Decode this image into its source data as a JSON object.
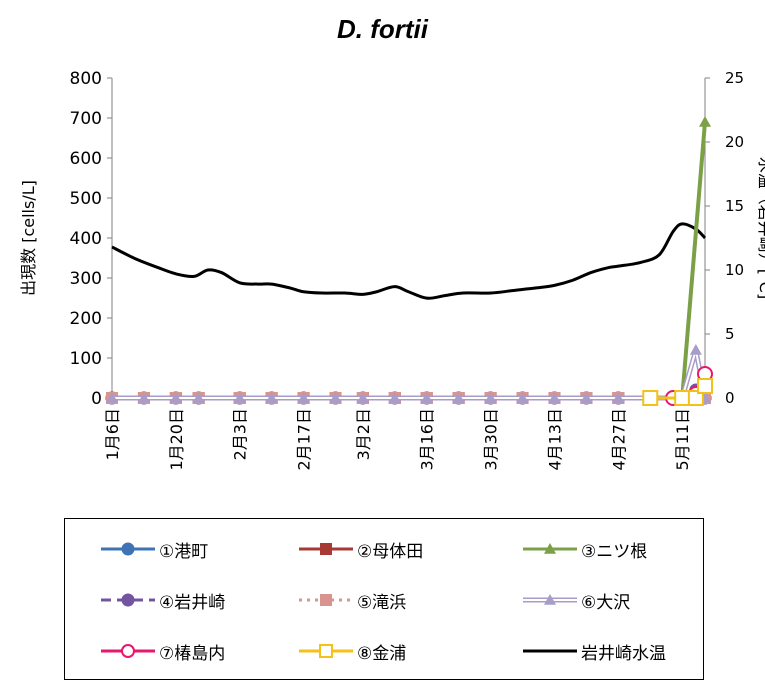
{
  "chart_data": {
    "type": "line",
    "title": "D. fortii",
    "ylabel": "出現数 [cells/L]",
    "y2label": "水温（岩井崎）[℃]",
    "ylim": [
      0,
      800
    ],
    "y2lim": [
      0,
      25
    ],
    "yticks": [
      "0",
      "100",
      "200",
      "300",
      "400",
      "500",
      "600",
      "700",
      "800"
    ],
    "y2ticks": [
      "0",
      "5",
      "10",
      "15",
      "20",
      "25"
    ],
    "xlim": [
      "01-06",
      "05-16"
    ],
    "xticks": [
      {
        "date": "01-06",
        "label": "1月6日"
      },
      {
        "date": "01-20",
        "label": "1月20日"
      },
      {
        "date": "02-03",
        "label": "2月3日"
      },
      {
        "date": "02-17",
        "label": "2月17日"
      },
      {
        "date": "03-02",
        "label": "3月2日"
      },
      {
        "date": "03-16",
        "label": "3月16日"
      },
      {
        "date": "03-30",
        "label": "3月30日"
      },
      {
        "date": "04-13",
        "label": "4月13日"
      },
      {
        "date": "04-27",
        "label": "4月27日"
      },
      {
        "date": "05-11",
        "label": "5月11日"
      }
    ],
    "grid": false,
    "legend_position": "bottom",
    "sampling_dates": [
      "01-06",
      "01-13",
      "01-20",
      "01-25",
      "02-03",
      "02-10",
      "02-17",
      "02-24",
      "03-02",
      "03-09",
      "03-16",
      "03-23",
      "03-30",
      "04-06",
      "04-13",
      "04-20",
      "04-27",
      "05-04",
      "05-09",
      "05-11",
      "05-14",
      "05-16"
    ],
    "series": [
      {
        "name": "①港町",
        "color": "#3F73B6",
        "marker": "circle-filled",
        "dash": "solid",
        "points": [
          [
            "01-06",
            0
          ],
          [
            "01-13",
            0
          ],
          [
            "01-20",
            0
          ],
          [
            "01-25",
            0
          ],
          [
            "02-03",
            0
          ],
          [
            "02-10",
            0
          ],
          [
            "02-17",
            0
          ],
          [
            "02-24",
            0
          ],
          [
            "03-02",
            0
          ],
          [
            "03-09",
            0
          ],
          [
            "03-16",
            0
          ],
          [
            "03-23",
            0
          ],
          [
            "03-30",
            0
          ],
          [
            "04-06",
            0
          ],
          [
            "04-13",
            0
          ],
          [
            "04-20",
            0
          ],
          [
            "04-27",
            0
          ],
          [
            "05-04",
            0
          ],
          [
            "05-11",
            0
          ],
          [
            "05-14",
            0
          ],
          [
            "05-16",
            0
          ]
        ]
      },
      {
        "name": "②母体田",
        "color": "#A83A35",
        "marker": "square-filled",
        "dash": "solid",
        "points": [
          [
            "01-06",
            0
          ],
          [
            "01-13",
            0
          ],
          [
            "01-20",
            0
          ],
          [
            "01-25",
            0
          ],
          [
            "02-03",
            0
          ],
          [
            "02-10",
            0
          ],
          [
            "02-17",
            0
          ],
          [
            "02-24",
            0
          ],
          [
            "03-02",
            0
          ],
          [
            "03-09",
            0
          ],
          [
            "03-16",
            0
          ],
          [
            "03-23",
            0
          ],
          [
            "03-30",
            0
          ],
          [
            "04-06",
            0
          ],
          [
            "04-13",
            0
          ],
          [
            "04-20",
            0
          ],
          [
            "04-27",
            0
          ],
          [
            "05-04",
            0
          ],
          [
            "05-11",
            0
          ],
          [
            "05-14",
            0
          ],
          [
            "05-16",
            0
          ]
        ]
      },
      {
        "name": "③ニツ根",
        "color": "#7BA045",
        "marker": "triangle-filled",
        "dash": "solid",
        "points": [
          [
            "01-06",
            0
          ],
          [
            "01-13",
            0
          ],
          [
            "01-20",
            0
          ],
          [
            "01-25",
            0
          ],
          [
            "02-03",
            0
          ],
          [
            "02-10",
            0
          ],
          [
            "02-17",
            0
          ],
          [
            "02-24",
            0
          ],
          [
            "03-02",
            0
          ],
          [
            "03-09",
            0
          ],
          [
            "03-16",
            0
          ],
          [
            "03-23",
            0
          ],
          [
            "03-30",
            0
          ],
          [
            "04-06",
            0
          ],
          [
            "04-13",
            0
          ],
          [
            "04-20",
            0
          ],
          [
            "04-27",
            0
          ],
          [
            "05-04",
            0
          ],
          [
            "05-11",
            0
          ],
          [
            "05-16",
            690
          ]
        ]
      },
      {
        "name": "④岩井崎",
        "color": "#7254A0",
        "marker": "circle-filled",
        "dash": "dash",
        "points": [
          [
            "01-06",
            0
          ],
          [
            "01-13",
            0
          ],
          [
            "01-20",
            0
          ],
          [
            "01-25",
            0
          ],
          [
            "02-03",
            0
          ],
          [
            "02-10",
            0
          ],
          [
            "02-17",
            0
          ],
          [
            "02-24",
            0
          ],
          [
            "03-02",
            0
          ],
          [
            "03-09",
            0
          ],
          [
            "03-16",
            0
          ],
          [
            "03-23",
            0
          ],
          [
            "03-30",
            0
          ],
          [
            "04-06",
            0
          ],
          [
            "04-13",
            0
          ],
          [
            "04-20",
            0
          ],
          [
            "04-27",
            0
          ],
          [
            "05-04",
            0
          ],
          [
            "05-11",
            0
          ],
          [
            "05-14",
            20
          ],
          [
            "05-16",
            0
          ]
        ]
      },
      {
        "name": "⑤滝浜",
        "color": "#D9948F",
        "marker": "square-filled",
        "dash": "dot",
        "points": [
          [
            "01-06",
            0
          ],
          [
            "01-13",
            0
          ],
          [
            "01-20",
            0
          ],
          [
            "01-25",
            0
          ],
          [
            "02-03",
            0
          ],
          [
            "02-10",
            0
          ],
          [
            "02-17",
            0
          ],
          [
            "02-24",
            0
          ],
          [
            "03-02",
            0
          ],
          [
            "03-09",
            0
          ],
          [
            "03-16",
            0
          ],
          [
            "03-23",
            0
          ],
          [
            "03-30",
            0
          ],
          [
            "04-06",
            0
          ],
          [
            "04-13",
            0
          ],
          [
            "04-20",
            0
          ],
          [
            "04-27",
            0
          ],
          [
            "05-04",
            0
          ],
          [
            "05-11",
            0
          ],
          [
            "05-14",
            0
          ],
          [
            "05-16",
            0
          ]
        ]
      },
      {
        "name": "⑥大沢",
        "color": "#A89CC8",
        "marker": "triangle-filled",
        "dash": "double",
        "points": [
          [
            "01-06",
            0
          ],
          [
            "01-13",
            0
          ],
          [
            "01-20",
            0
          ],
          [
            "01-25",
            0
          ],
          [
            "02-03",
            0
          ],
          [
            "02-10",
            0
          ],
          [
            "02-17",
            0
          ],
          [
            "02-24",
            0
          ],
          [
            "03-02",
            0
          ],
          [
            "03-09",
            0
          ],
          [
            "03-16",
            0
          ],
          [
            "03-23",
            0
          ],
          [
            "03-30",
            0
          ],
          [
            "04-06",
            0
          ],
          [
            "04-13",
            0
          ],
          [
            "04-20",
            0
          ],
          [
            "04-27",
            0
          ],
          [
            "05-04",
            0
          ],
          [
            "05-11",
            0
          ],
          [
            "05-14",
            120
          ],
          [
            "05-16",
            0
          ]
        ]
      },
      {
        "name": "⑦椿島内",
        "color": "#E8166E",
        "marker": "circle-open",
        "dash": "solid",
        "points": [
          [
            "05-09",
            0
          ],
          [
            "05-11",
            0
          ],
          [
            "05-14",
            10
          ],
          [
            "05-16",
            60
          ]
        ]
      },
      {
        "name": "⑧金浦",
        "color": "#F2C218",
        "marker": "square-open",
        "dash": "solid",
        "points": [
          [
            "05-04",
            0
          ],
          [
            "05-11",
            0
          ],
          [
            "05-14",
            0
          ],
          [
            "05-16",
            30
          ]
        ]
      }
    ],
    "temperature": {
      "name": "岩井崎水温",
      "color": "#000000",
      "axis": "right",
      "points": [
        [
          "01-06",
          11.8
        ],
        [
          "01-11",
          10.9
        ],
        [
          "01-16",
          10.2
        ],
        [
          "01-20",
          9.7
        ],
        [
          "01-24",
          9.5
        ],
        [
          "01-27",
          10.0
        ],
        [
          "01-30",
          9.8
        ],
        [
          "02-03",
          9.0
        ],
        [
          "02-07",
          8.9
        ],
        [
          "02-10",
          8.9
        ],
        [
          "02-14",
          8.6
        ],
        [
          "02-17",
          8.3
        ],
        [
          "02-21",
          8.2
        ],
        [
          "02-26",
          8.2
        ],
        [
          "03-02",
          8.1
        ],
        [
          "03-05",
          8.3
        ],
        [
          "03-09",
          8.7
        ],
        [
          "03-12",
          8.3
        ],
        [
          "03-16",
          7.8
        ],
        [
          "03-20",
          8.0
        ],
        [
          "03-24",
          8.2
        ],
        [
          "03-30",
          8.2
        ],
        [
          "04-04",
          8.4
        ],
        [
          "04-09",
          8.6
        ],
        [
          "04-13",
          8.8
        ],
        [
          "04-17",
          9.2
        ],
        [
          "04-21",
          9.8
        ],
        [
          "04-25",
          10.2
        ],
        [
          "04-27",
          10.3
        ],
        [
          "05-02",
          10.6
        ],
        [
          "05-06",
          11.2
        ],
        [
          "05-09",
          13.0
        ],
        [
          "05-11",
          13.6
        ],
        [
          "05-14",
          13.2
        ],
        [
          "05-16",
          12.5
        ]
      ]
    }
  }
}
